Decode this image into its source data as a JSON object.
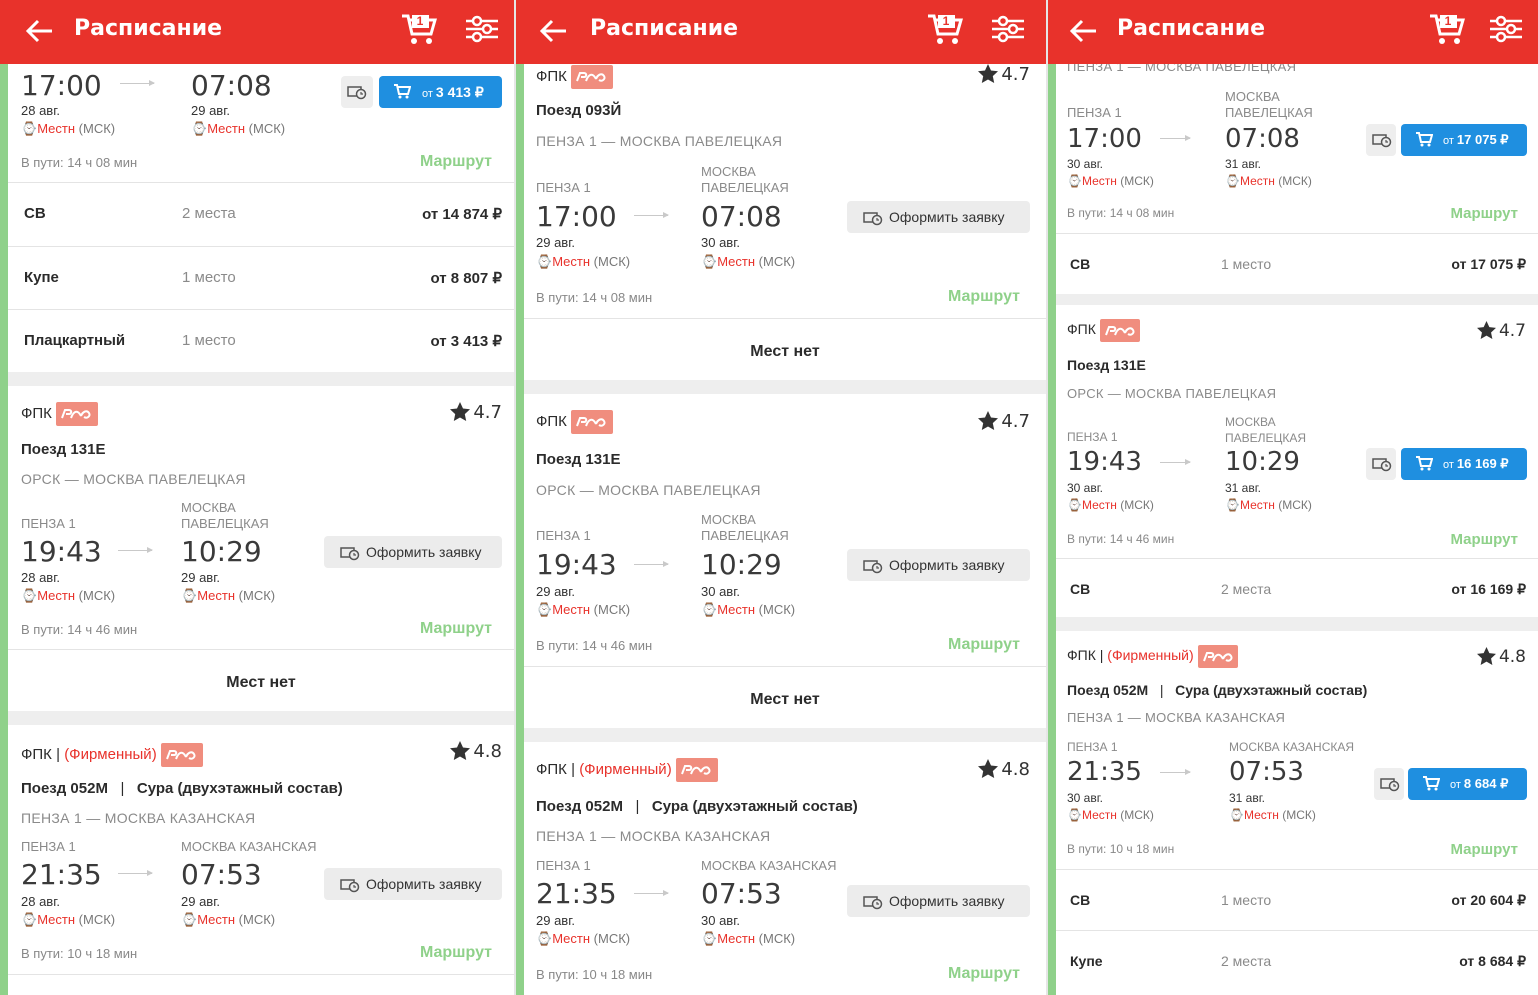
{
  "header": {
    "title": "Расписание",
    "cart_count": "1"
  },
  "common": {
    "tz_local": "Местн",
    "tz_msk": "(МСК)",
    "route_link": "Маршрут",
    "no_seats": "Мест нет",
    "request_button": "Оформить заявку",
    "price_prefix": "от",
    "carrier": "ФПК",
    "separator": "|",
    "firm": "(Фирменный)"
  },
  "screen1": {
    "top": {
      "dep_time": "17:00",
      "dep_date": "28 авг.",
      "arr_time": "07:08",
      "arr_date": "29 авг.",
      "price": "3 413 ₽",
      "duration": "В пути: 14 ч 08 мин",
      "classes": [
        {
          "name": "СВ",
          "seats": "2 места",
          "price": "от 14 874 ₽"
        },
        {
          "name": "Купе",
          "seats": "1 место",
          "price": "от 8 807 ₽"
        },
        {
          "name": "Плацкартный",
          "seats": "1 место",
          "price": "от 3 413 ₽"
        }
      ]
    },
    "t131": {
      "rating": "4.7",
      "train": "Поезд 131Е",
      "route": "ОРСК — МОСКВА ПАВЕЛЕЦКАЯ",
      "from": "ПЕНЗА 1",
      "to": "МОСКВА ПАВЕЛЕЦКАЯ",
      "dep_time": "19:43",
      "dep_date": "28 авг.",
      "arr_time": "10:29",
      "arr_date": "29 авг.",
      "duration": "В пути: 14 ч 46 мин"
    },
    "t052": {
      "rating": "4.8",
      "train": "Поезд 052М",
      "name": "Сура (двухэтажный состав)",
      "route": "ПЕНЗА 1 — МОСКВА КАЗАНСКАЯ",
      "from": "ПЕНЗА 1",
      "to": "МОСКВА КАЗАНСКАЯ",
      "dep_time": "21:35",
      "dep_date": "28 авг.",
      "arr_time": "07:53",
      "arr_date": "29 авг.",
      "duration": "В пути: 10 ч 18 мин"
    }
  },
  "screen2": {
    "t093": {
      "rating": "4.7",
      "train": "Поезд 093Й",
      "route": "ПЕНЗА 1 — МОСКВА ПАВЕЛЕЦКАЯ",
      "from": "ПЕНЗА 1",
      "to": "МОСКВА ПАВЕЛЕЦКАЯ",
      "dep_time": "17:00",
      "dep_date": "29 авг.",
      "arr_time": "07:08",
      "arr_date": "30 авг.",
      "duration": "В пути: 14 ч 08 мин"
    },
    "t131": {
      "rating": "4.7",
      "train": "Поезд 131Е",
      "route": "ОРСК — МОСКВА ПАВЕЛЕЦКАЯ",
      "from": "ПЕНЗА 1",
      "to": "МОСКВА ПАВЕЛЕЦКАЯ",
      "dep_time": "19:43",
      "dep_date": "29 авг.",
      "arr_time": "10:29",
      "arr_date": "30 авг.",
      "duration": "В пути: 14 ч 46 мин"
    },
    "t052": {
      "rating": "4.8",
      "train": "Поезд 052М",
      "name": "Сура (двухэтажный состав)",
      "route": "ПЕНЗА 1 — МОСКВА КАЗАНСКАЯ",
      "from": "ПЕНЗА 1",
      "to": "МОСКВА КАЗАНСКАЯ",
      "dep_time": "21:35",
      "dep_date": "29 авг.",
      "arr_time": "07:53",
      "arr_date": "30 авг.",
      "duration": "В пути: 10 ч 18 мин"
    }
  },
  "screen3": {
    "top": {
      "route": "ПЕНЗА 1 — МОСКВА ПАВЕЛЕЦКАЯ",
      "from": "ПЕНЗА 1",
      "to": "МОСКВА ПАВЕЛЕЦКАЯ",
      "dep_time": "17:00",
      "dep_date": "30 авг.",
      "arr_time": "07:08",
      "arr_date": "31 авг.",
      "price": "17 075 ₽",
      "duration": "В пути: 14 ч 08 мин",
      "classes": [
        {
          "name": "СВ",
          "seats": "1 место",
          "price": "от 17 075 ₽"
        }
      ]
    },
    "t131": {
      "rating": "4.7",
      "train": "Поезд 131Е",
      "route": "ОРСК — МОСКВА ПАВЕЛЕЦКАЯ",
      "from": "ПЕНЗА 1",
      "to": "МОСКВА ПАВЕЛЕЦКАЯ",
      "dep_time": "19:43",
      "dep_date": "30 авг.",
      "arr_time": "10:29",
      "arr_date": "31 авг.",
      "price": "16 169 ₽",
      "duration": "В пути: 14 ч 46 мин",
      "classes": [
        {
          "name": "СВ",
          "seats": "2 места",
          "price": "от 16 169 ₽"
        }
      ]
    },
    "t052": {
      "rating": "4.8",
      "train": "Поезд 052М",
      "name": "Сура (двухэтажный состав)",
      "route": "ПЕНЗА 1 — МОСКВА КАЗАНСКАЯ",
      "from": "ПЕНЗА 1",
      "to": "МОСКВА КАЗАНСКАЯ",
      "dep_time": "21:35",
      "dep_date": "30 авг.",
      "arr_time": "07:53",
      "arr_date": "31 авг.",
      "price": "8 684 ₽",
      "duration": "В пути: 10 ч 18 мин",
      "classes": [
        {
          "name": "СВ",
          "seats": "1 место",
          "price": "от 20 604 ₽"
        },
        {
          "name": "Купе",
          "seats": "2 места",
          "price": "от 8 684 ₽"
        }
      ]
    }
  },
  "colors": {
    "header": "#e8322b",
    "accent": "#8fd18a",
    "button": "#1f8fe0"
  }
}
